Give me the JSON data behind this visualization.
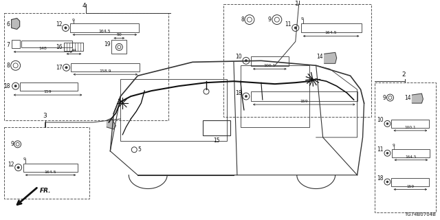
{
  "bg_color": "#ffffff",
  "fig_width": 6.4,
  "fig_height": 3.2,
  "dpi": 100,
  "watermark": "TG74B0704B"
}
